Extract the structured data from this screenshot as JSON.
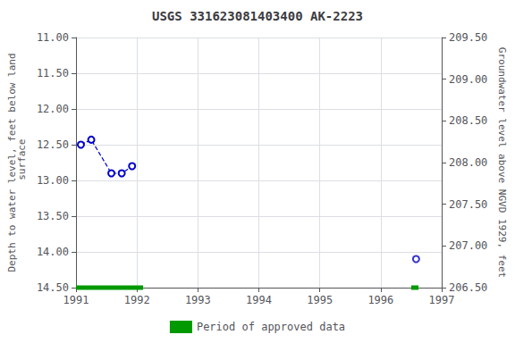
{
  "chart_data": {
    "type": "line",
    "title": "USGS 331623081403400 AK-2223",
    "ylabel": "Depth to water level, feet below land\n surface",
    "y2label": "Groundwater level above NGVD 1929, feet",
    "xlim": [
      1991.0,
      1997.0
    ],
    "xticks": [
      1991,
      1992,
      1993,
      1994,
      1995,
      1996,
      1997
    ],
    "ylim": [
      14.5,
      11.0
    ],
    "yticks": [
      {
        "value": 11.0,
        "label": "11.00"
      },
      {
        "value": 11.5,
        "label": "11.50"
      },
      {
        "value": 12.0,
        "label": "12.00"
      },
      {
        "value": 12.5,
        "label": "12.50"
      },
      {
        "value": 13.0,
        "label": "13.00"
      },
      {
        "value": 13.5,
        "label": "13.50"
      },
      {
        "value": 14.0,
        "label": "14.00"
      },
      {
        "value": 14.5,
        "label": "14.50"
      }
    ],
    "y2lim": [
      206.5,
      209.5
    ],
    "y2ticks": [
      {
        "value": 209.5,
        "label": "209.50"
      },
      {
        "value": 209.0,
        "label": "209.00"
      },
      {
        "value": 208.5,
        "label": "208.50"
      },
      {
        "value": 208.0,
        "label": "208.00"
      },
      {
        "value": 207.5,
        "label": "207.50"
      },
      {
        "value": 207.0,
        "label": "207.00"
      },
      {
        "value": 206.5,
        "label": "206.50"
      }
    ],
    "grid": true,
    "legend": "bottom",
    "series": [
      {
        "type": "line",
        "x": [
          1991.08,
          1991.25,
          1991.58,
          1991.75,
          1991.92
        ],
        "values": [
          12.5,
          12.43,
          12.9,
          12.9,
          12.8
        ],
        "color": "#0000cc",
        "line_style": "dashed",
        "marker": "open_circle"
      },
      {
        "type": "scatter",
        "x": [
          1996.58
        ],
        "values": [
          14.1
        ],
        "color": "#0000cc",
        "marker": "open_circle"
      },
      {
        "type": "line",
        "name": "Period of approved data",
        "x": [
          1991.0,
          1992.1,
          null,
          1996.5,
          1996.62
        ],
        "values": [
          14.5,
          14.5,
          null,
          14.5,
          14.5
        ],
        "color": "#009900",
        "line_style": "solid",
        "marker": "none"
      }
    ]
  }
}
